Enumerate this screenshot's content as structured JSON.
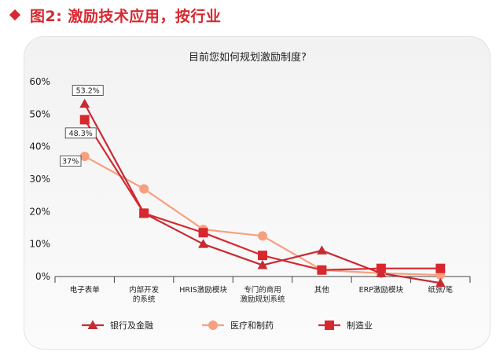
{
  "header": {
    "title": "图2: 激励技术应用，按行业"
  },
  "colors": {
    "accent": "#d7282f",
    "bank": "#c62b34",
    "medical": "#f6a07f",
    "manufacturing": "#d7282f",
    "axis": "#444444"
  },
  "chart_data": {
    "type": "line",
    "title": "目前您如何规划激励制度?",
    "ylim": [
      0,
      60
    ],
    "yticks": [
      "0%",
      "10%",
      "20%",
      "30%",
      "40%",
      "50%",
      "60%"
    ],
    "categories": [
      [
        "电子表单"
      ],
      [
        "内部开发",
        "的系统"
      ],
      [
        "HRIS激励模块"
      ],
      [
        "专门的商用",
        "激励规划系统"
      ],
      [
        "其他"
      ],
      [
        "ERP激励模块"
      ],
      [
        "纸张/笔"
      ]
    ],
    "series": [
      {
        "name": "银行及金融",
        "marker": "triangle",
        "color": "#c62b34",
        "values": [
          53.2,
          19.5,
          10,
          3.5,
          8,
          1,
          -2
        ]
      },
      {
        "name": "医疗和制药",
        "marker": "circle",
        "color": "#f6a07f",
        "values": [
          37,
          27,
          14.5,
          12.5,
          2,
          1,
          0.5
        ]
      },
      {
        "name": "制造业",
        "marker": "square",
        "color": "#d7282f",
        "values": [
          48.3,
          19.5,
          13.5,
          6.5,
          2,
          2.5,
          2.5
        ]
      }
    ],
    "data_labels": [
      {
        "text": "53.2%",
        "series": 0,
        "index": 0
      },
      {
        "text": "48.3%",
        "series": 2,
        "index": 0
      },
      {
        "text": "37%",
        "series": 1,
        "index": 0
      }
    ]
  }
}
